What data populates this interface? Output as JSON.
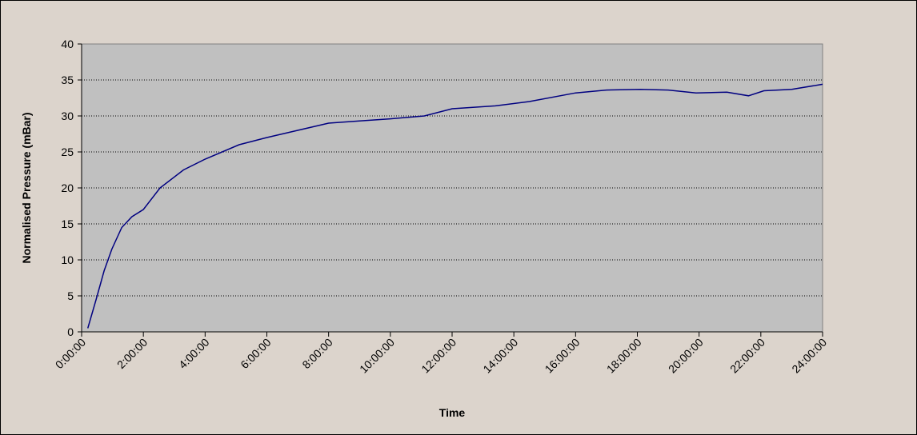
{
  "chart_data": {
    "type": "line",
    "y_label": "Normalised Pressure (mBar)",
    "x_label": "Time",
    "x": [
      0.2,
      0.47,
      0.73,
      0.98,
      1.3,
      1.63,
      2.0,
      2.54,
      3.3,
      4.0,
      5.1,
      6.0,
      7.0,
      8.0,
      9.0,
      10.0,
      11.1,
      12.0,
      13.4,
      14.5,
      16.0,
      17.0,
      18.1,
      19.0,
      19.9,
      20.9,
      21.6,
      22.1,
      23.0,
      24.0
    ],
    "series": [
      {
        "name": "Normalised Pressure",
        "color": "#000080",
        "values": [
          0.5,
          4.5,
          8.5,
          11.5,
          14.5,
          16,
          17,
          20,
          22.5,
          24,
          26,
          27,
          28,
          29,
          29.3,
          29.6,
          30,
          31,
          31.4,
          32,
          33.2,
          33.6,
          33.7,
          33.6,
          33.2,
          33.3,
          32.8,
          33.5,
          33.7,
          34.4
        ]
      }
    ],
    "xlim": [
      0,
      24
    ],
    "xticks": [
      {
        "value": 0,
        "label": "0:00:00"
      },
      {
        "value": 2,
        "label": "2:00:00"
      },
      {
        "value": 4,
        "label": "4:00:00"
      },
      {
        "value": 6,
        "label": "6:00:00"
      },
      {
        "value": 8,
        "label": "8:00:00"
      },
      {
        "value": 10,
        "label": "10:00:00"
      },
      {
        "value": 12,
        "label": "12:00:00"
      },
      {
        "value": 14,
        "label": "14:00:00"
      },
      {
        "value": 16,
        "label": "16:00:00"
      },
      {
        "value": 18,
        "label": "18:00:00"
      },
      {
        "value": 20,
        "label": "20:00:00"
      },
      {
        "value": 22,
        "label": "22:00:00"
      },
      {
        "value": 24,
        "label": "24:00:00"
      }
    ],
    "ylim": [
      0,
      40
    ],
    "yticks": [
      0,
      5,
      10,
      15,
      20,
      25,
      30,
      35,
      40
    ],
    "grid": true
  }
}
